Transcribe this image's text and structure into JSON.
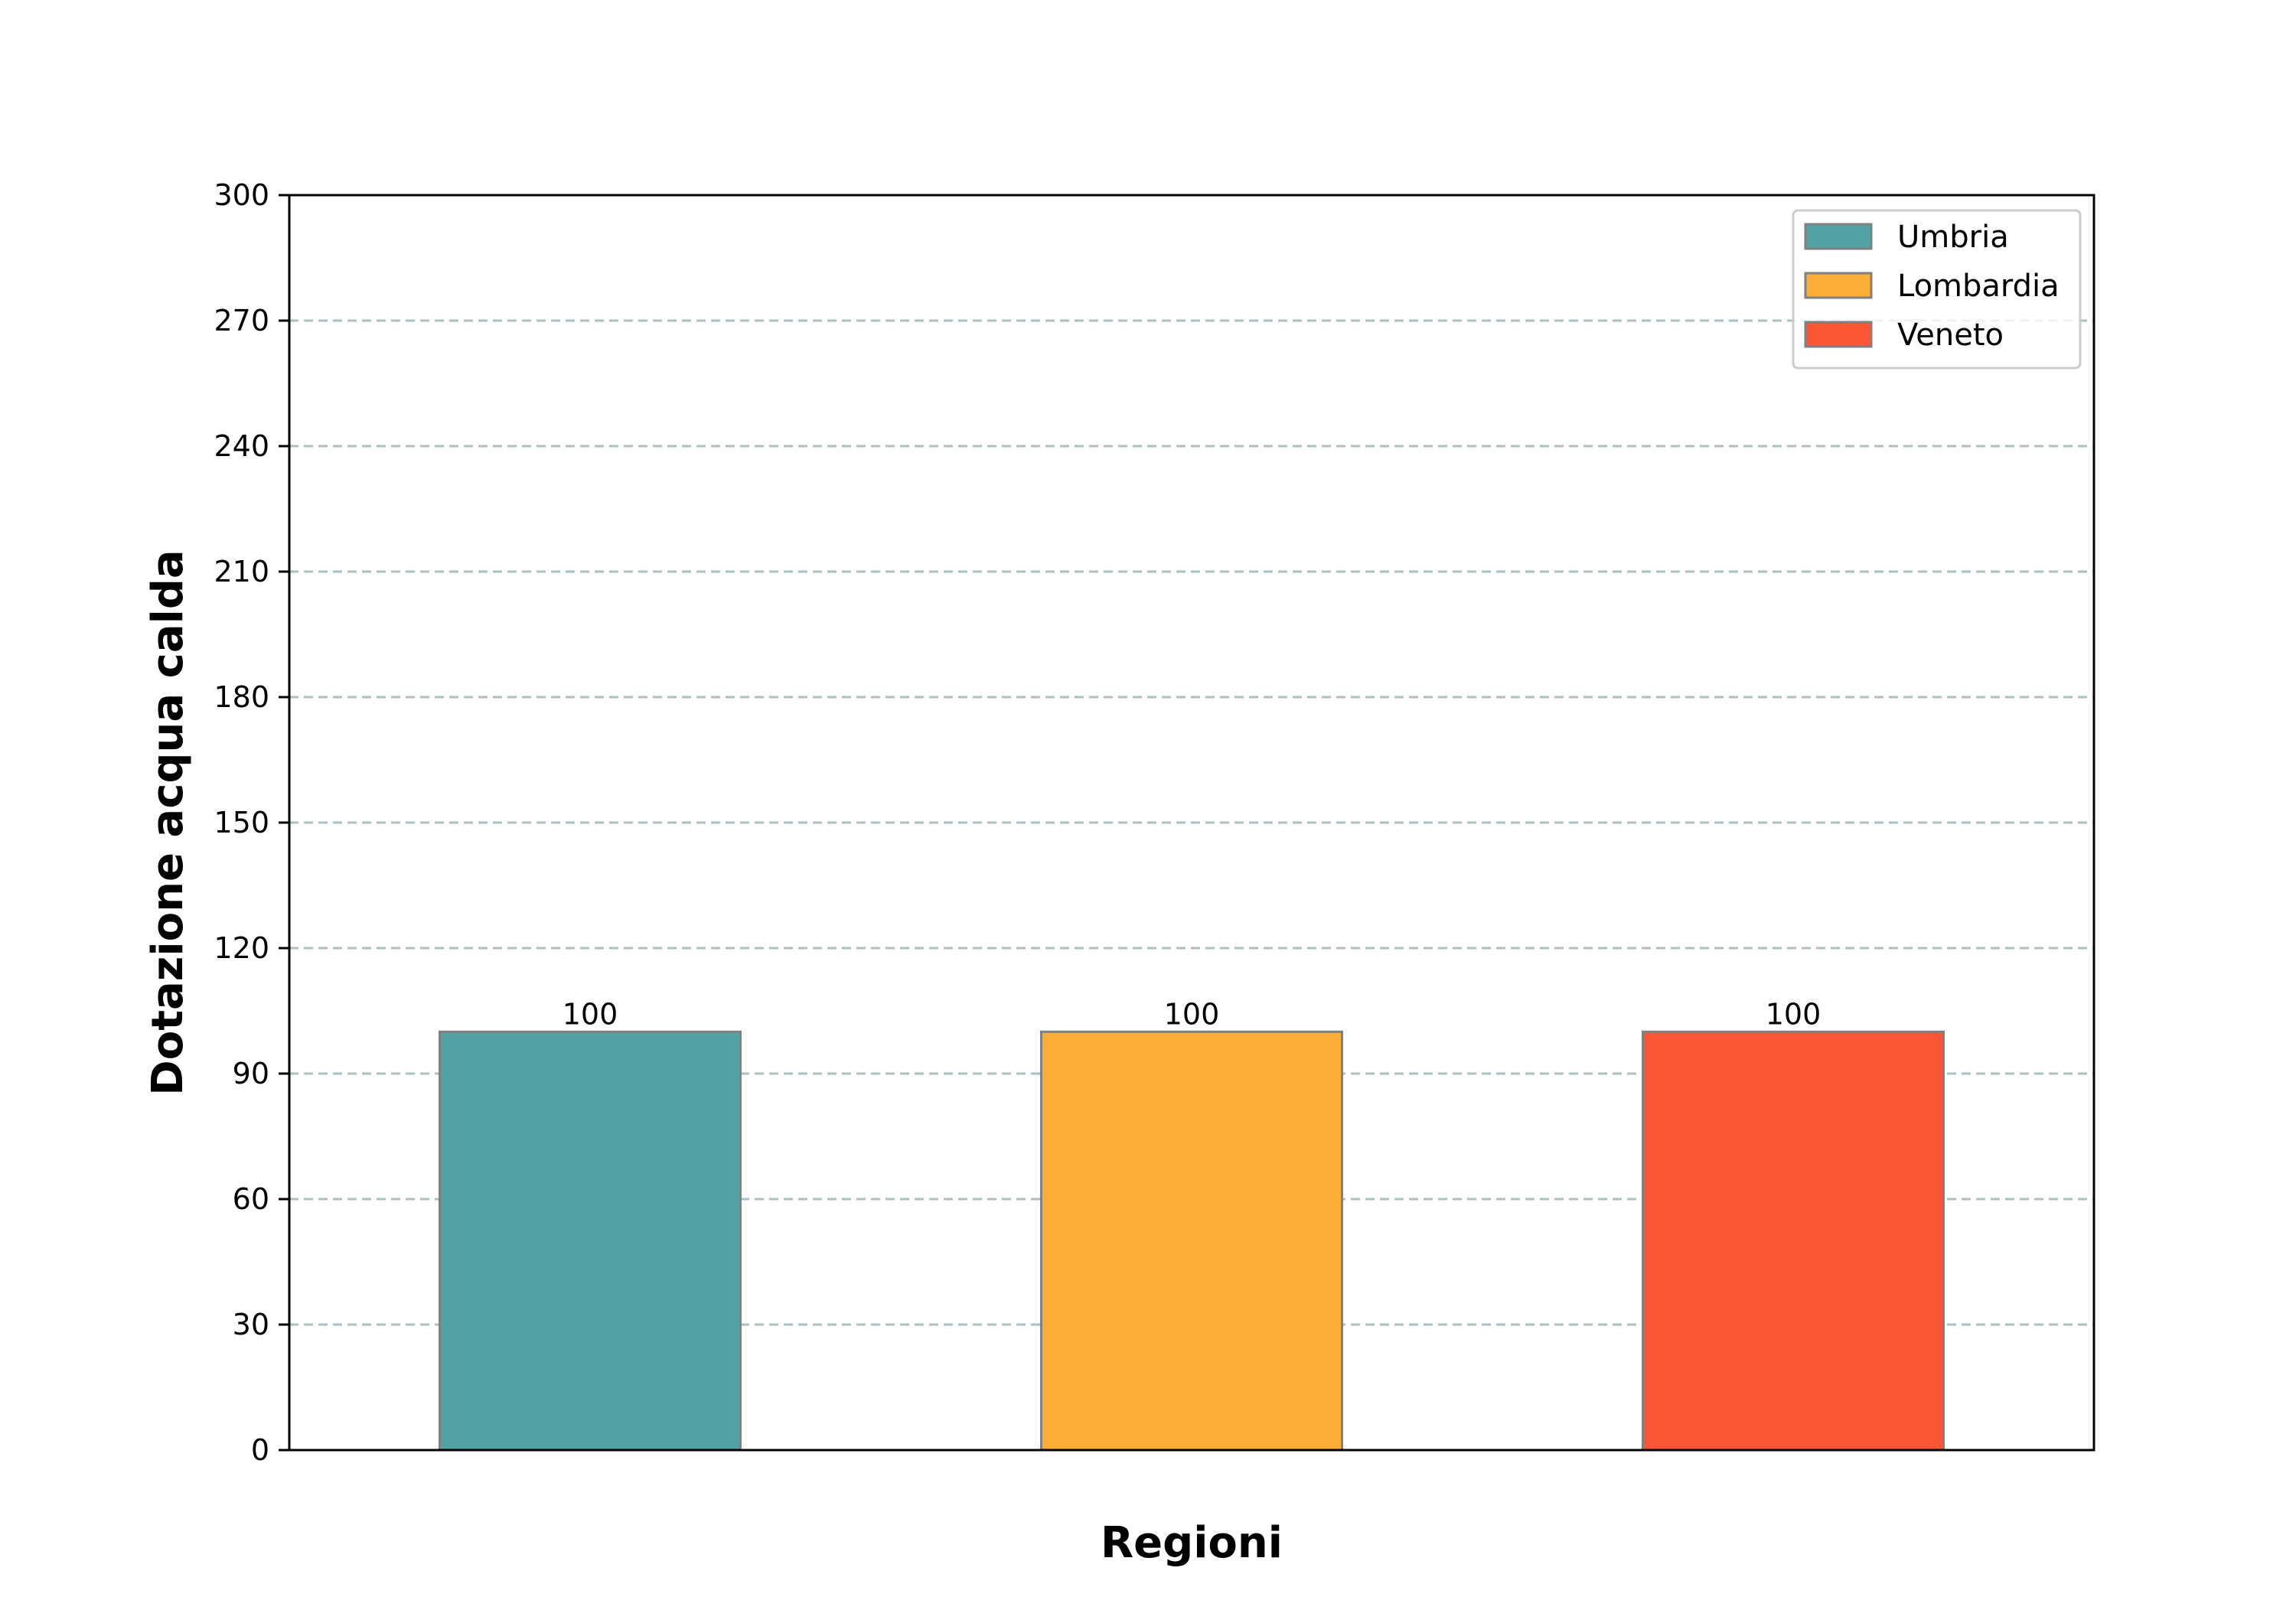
{
  "chart_data": {
    "type": "bar",
    "title": "",
    "xlabel": "Regioni",
    "ylabel": "Dotazione acqua calda",
    "categories": [
      "Umbria",
      "Lombardia",
      "Veneto"
    ],
    "values": [
      100,
      100,
      100
    ],
    "data_labels": [
      "100",
      "100",
      "100"
    ],
    "colors": [
      "#51a3a3",
      "#fbaf36",
      "#fa5535"
    ],
    "edge_color": "#808080",
    "ylim": [
      0,
      300
    ],
    "yticks": [
      0,
      30,
      60,
      90,
      120,
      150,
      180,
      210,
      240,
      270,
      300
    ],
    "show_xticks": false,
    "grid": "y, dashed",
    "grid_color": "#a9c1c1",
    "legend": {
      "placement": "top-right",
      "entries": [
        "Umbria",
        "Lombardia",
        "Veneto"
      ]
    }
  }
}
